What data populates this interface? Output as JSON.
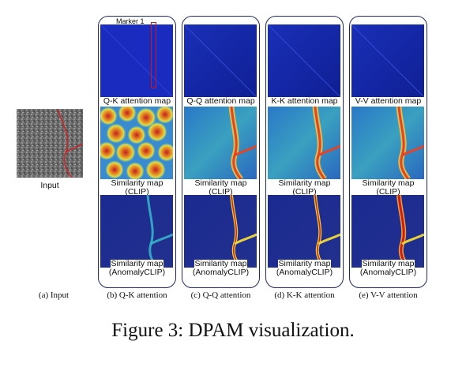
{
  "input": {
    "label": "Input"
  },
  "marker": {
    "label": "Marker 1"
  },
  "panels": [
    {
      "attention_label": "Q-K attention map",
      "clip_label_1": "Similarity map",
      "clip_label_2": "(CLIP)",
      "anomaly_label_1": "Similarity map",
      "anomaly_label_2": "(AnomalyCLIP)",
      "caption": "(b) Q-K attention"
    },
    {
      "attention_label": "Q-Q attention map",
      "clip_label_1": "Similarity map",
      "clip_label_2": "(CLIP)",
      "anomaly_label_1": "Similarity map",
      "anomaly_label_2": "(AnomalyCLIP)",
      "caption": "(c) Q-Q attention"
    },
    {
      "attention_label": "K-K attention map",
      "clip_label_1": "Similarity map",
      "clip_label_2": "(CLIP)",
      "anomaly_label_1": "Similarity map",
      "anomaly_label_2": "(AnomalyCLIP)",
      "caption": "(d) K-K attention"
    },
    {
      "attention_label": "V-V attention map",
      "clip_label_1": "Similarity map",
      "clip_label_2": "(CLIP)",
      "anomaly_label_1": "Similarity map",
      "anomaly_label_2": "(AnomalyCLIP)",
      "caption": "(e) V-V attention"
    }
  ],
  "captions": {
    "input": "(a) Input",
    "figure": "Figure 3: DPAM visualization."
  }
}
